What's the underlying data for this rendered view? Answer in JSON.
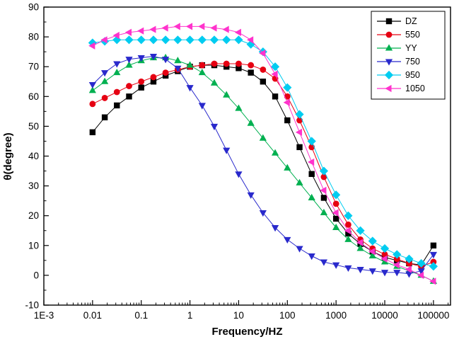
{
  "chart_data": {
    "type": "line",
    "title": "",
    "xlabel": "Frequency/HZ",
    "ylabel": "θ(degree)",
    "x_scale": "log",
    "xlim": [
      0.001,
      224000
    ],
    "ylim": [
      -10,
      90
    ],
    "grid": false,
    "legend_position": "top-right",
    "x_tick_labels": [
      "1E-3",
      "0.01",
      "0.1",
      "1",
      "10",
      "100",
      "1000",
      "10000",
      "100000"
    ],
    "x_tick_values": [
      0.001,
      0.01,
      0.1,
      1,
      10,
      100,
      1000,
      10000,
      100000
    ],
    "y_ticks": [
      -10,
      0,
      10,
      20,
      30,
      40,
      50,
      60,
      70,
      80,
      90
    ],
    "x": [
      0.01,
      0.0178,
      0.0316,
      0.0562,
      0.1,
      0.178,
      0.316,
      0.562,
      1,
      1.78,
      3.16,
      5.62,
      10,
      17.8,
      31.6,
      56.2,
      100,
      178,
      316,
      562,
      1000,
      1780,
      3160,
      5620,
      10000,
      17800,
      31600,
      56200,
      100000
    ],
    "series": [
      {
        "name": "DZ",
        "color": "#000000",
        "marker": "square",
        "values": [
          48,
          53,
          57,
          60,
          63,
          65,
          67,
          68.5,
          70,
          70.5,
          70.5,
          70,
          69.5,
          68,
          65,
          60,
          52,
          43,
          34,
          26,
          19,
          14,
          10.5,
          8,
          6,
          5,
          4,
          3.5,
          10
        ]
      },
      {
        "name": "550",
        "color": "#e60012",
        "marker": "circle",
        "values": [
          57.5,
          59.5,
          61.5,
          63.5,
          65,
          66.5,
          68,
          69,
          70,
          70.5,
          71,
          71,
          71,
          70.5,
          69,
          66,
          60,
          52,
          43,
          33,
          24,
          17,
          12,
          9,
          7,
          5.5,
          4,
          3,
          4.5
        ]
      },
      {
        "name": "YY",
        "color": "#00b050",
        "marker": "triangle-up",
        "values": [
          62,
          65,
          68,
          70.5,
          72,
          73,
          73,
          72,
          70.5,
          68,
          64.5,
          60.5,
          56,
          51,
          46,
          41,
          36,
          31,
          26,
          21,
          16,
          12,
          9,
          6.5,
          4.5,
          3,
          1.5,
          0,
          -2
        ]
      },
      {
        "name": "750",
        "color": "#2929cc",
        "marker": "triangle-down",
        "values": [
          64,
          68,
          71,
          72.5,
          73,
          73.5,
          72.5,
          69.5,
          63,
          57,
          50,
          42,
          34,
          27,
          21,
          16,
          12,
          9,
          6.5,
          4.5,
          3.5,
          2.5,
          2,
          1.5,
          1,
          1,
          0.5,
          1.5,
          7
        ]
      },
      {
        "name": "950",
        "color": "#00ccf0",
        "marker": "diamond",
        "values": [
          78,
          78.5,
          79,
          79,
          79,
          79,
          79,
          79,
          79,
          79,
          79,
          79,
          79,
          77.5,
          75,
          70,
          63,
          54,
          45,
          35,
          27,
          20,
          15,
          11.5,
          9,
          7,
          5.5,
          4,
          3
        ]
      },
      {
        "name": "1050",
        "color": "#ff33cc",
        "marker": "triangle-left",
        "values": [
          77,
          79,
          80.5,
          81.5,
          82,
          82.5,
          83,
          83.5,
          83.5,
          83.5,
          83,
          82.5,
          81.5,
          79,
          74.5,
          67.5,
          58,
          48,
          38,
          28.5,
          21,
          15,
          11,
          8,
          5.5,
          3.5,
          2,
          0,
          -2
        ]
      }
    ],
    "legend": [
      "DZ",
      "550",
      "YY",
      "750",
      "950",
      "1050"
    ]
  }
}
